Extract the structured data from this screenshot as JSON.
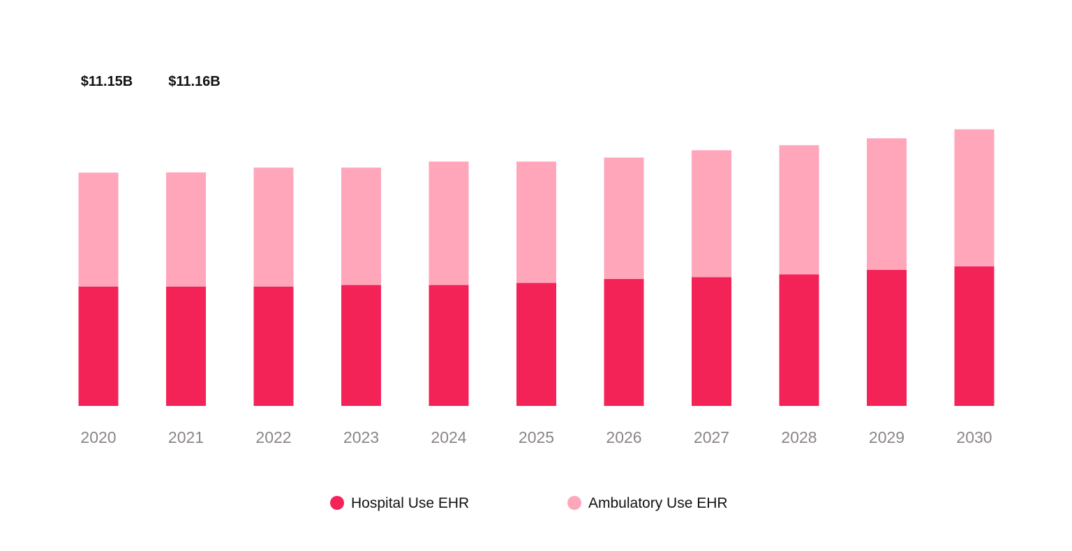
{
  "chart_data": {
    "type": "bar",
    "stacked": true,
    "categories": [
      "2020",
      "2021",
      "2022",
      "2023",
      "2024",
      "2025",
      "2026",
      "2027",
      "2028",
      "2029",
      "2030"
    ],
    "series": [
      {
        "name": "Hospital Use EHR",
        "color": "#f42357",
        "values": [
          5.7,
          5.7,
          5.7,
          5.78,
          5.78,
          5.88,
          6.07,
          6.15,
          6.29,
          6.5,
          6.67
        ]
      },
      {
        "name": "Ambulatory Use EHR",
        "color": "#ffa6bb",
        "values": [
          5.45,
          5.46,
          5.69,
          5.61,
          5.9,
          5.8,
          5.8,
          6.07,
          6.17,
          6.29,
          6.55
        ]
      }
    ],
    "data_labels": [
      "$11.15B",
      "$11.16B"
    ],
    "ylim": [
      0,
      15
    ],
    "grid": false,
    "legend_position": "bottom"
  }
}
